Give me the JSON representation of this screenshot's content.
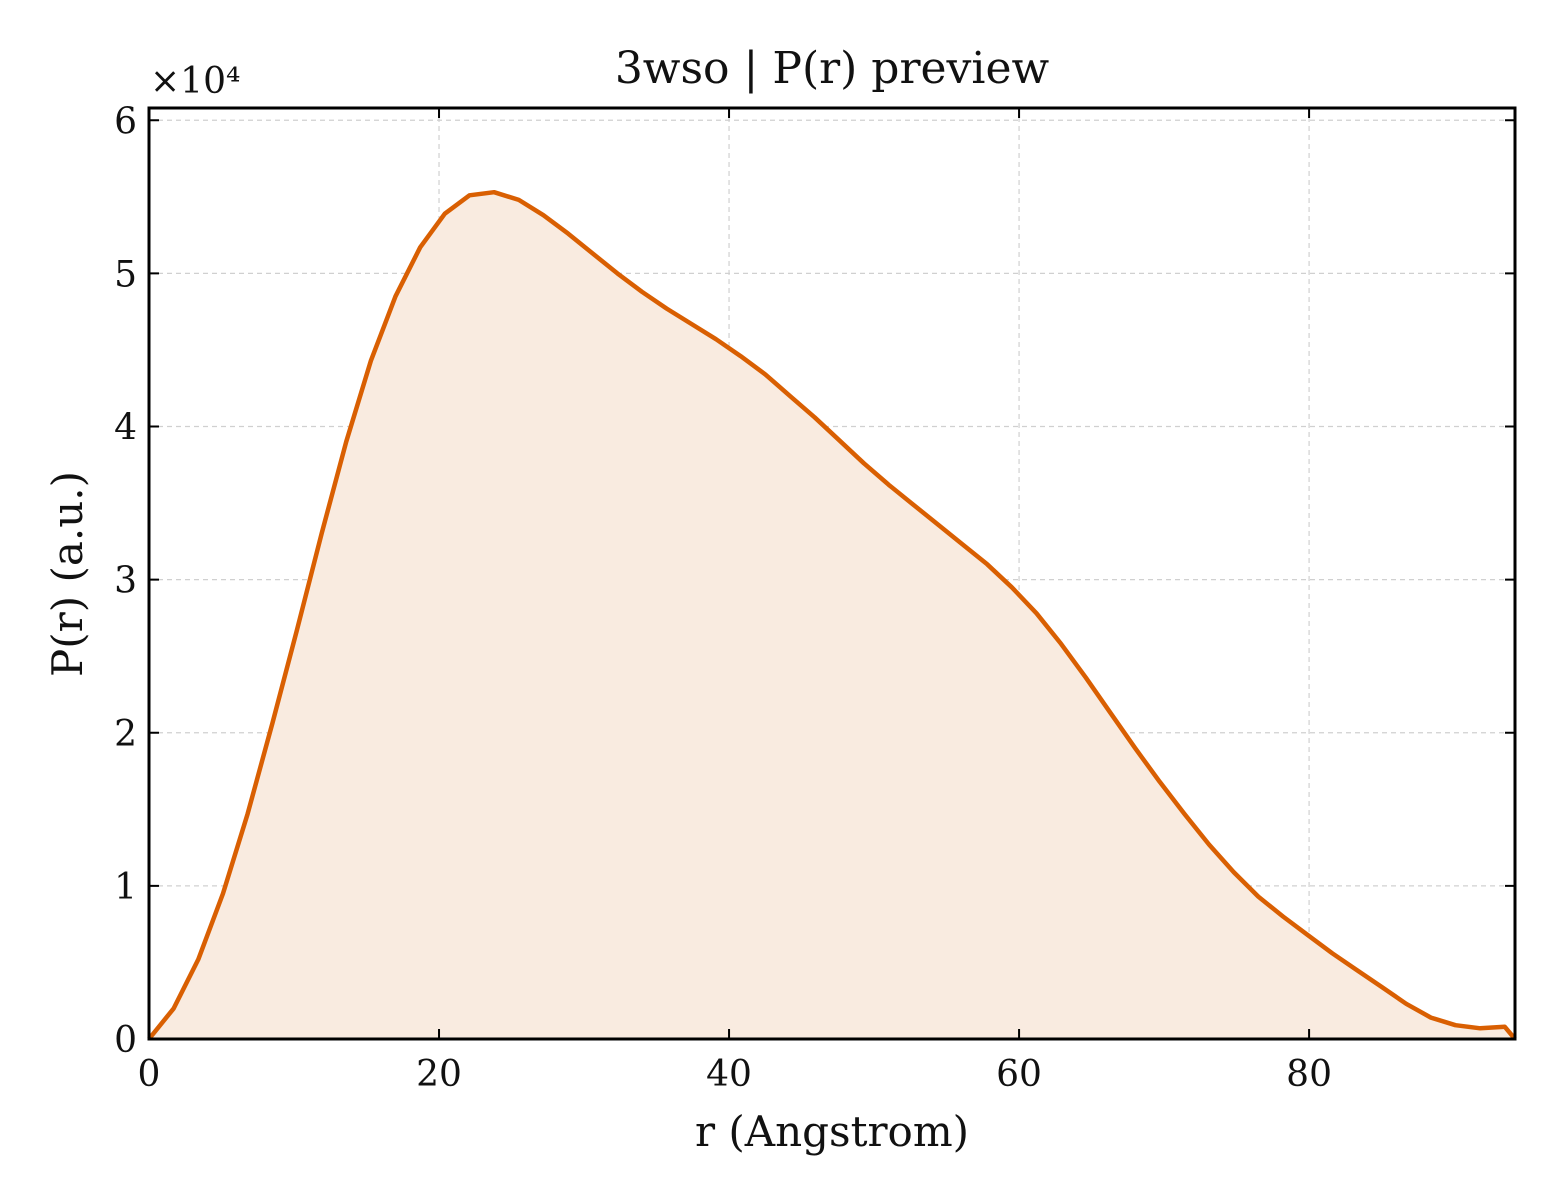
{
  "chart_data": {
    "type": "area",
    "title": "3wso | P(r) preview",
    "xlabel": "r (Angstrom)",
    "ylabel": "P(r) (a.u.)",
    "y_multiplier_label": "×10⁴",
    "xlim": [
      0,
      94.2
    ],
    "ylim": [
      0,
      60800
    ],
    "x_ticks": [
      0,
      20,
      40,
      60,
      80
    ],
    "y_ticks": [
      0,
      10000,
      20000,
      30000,
      40000,
      50000,
      60000
    ],
    "x_tick_labels": [
      "0",
      "20",
      "40",
      "60",
      "80"
    ],
    "y_tick_labels": [
      "0",
      "1",
      "2",
      "3",
      "4",
      "5",
      "6"
    ],
    "grid": true,
    "colors": {
      "line": "#d95f02",
      "fill": "#f9ebe0",
      "grid": "#d0d0d0",
      "frame": "#000000"
    },
    "series": [
      {
        "x": [
          0,
          1.7,
          3.4,
          5.1,
          6.8,
          8.5,
          10.2,
          11.9,
          13.6,
          15.3,
          17.0,
          18.7,
          20.4,
          22.1,
          23.8,
          25.5,
          27.2,
          28.9,
          30.6,
          32.3,
          34.0,
          35.7,
          37.4,
          39.1,
          40.8,
          42.5,
          44.2,
          45.9,
          47.6,
          49.3,
          51.0,
          52.7,
          54.4,
          56.1,
          57.8,
          59.5,
          61.2,
          62.9,
          64.6,
          66.3,
          68.0,
          69.7,
          71.4,
          73.1,
          74.8,
          76.5,
          78.2,
          79.9,
          81.6,
          83.3,
          85.0,
          86.7,
          88.4,
          90.1,
          91.8,
          93.5,
          94.2
        ],
        "y": [
          0,
          2000,
          5200,
          9500,
          14700,
          20600,
          26700,
          33000,
          39000,
          44300,
          48500,
          51700,
          53900,
          55100,
          55300,
          54800,
          53800,
          52600,
          51300,
          50000,
          48800,
          47700,
          46700,
          45700,
          44600,
          43400,
          42000,
          40600,
          39100,
          37600,
          36200,
          34900,
          33600,
          32300,
          31000,
          29500,
          27800,
          25800,
          23600,
          21300,
          19000,
          16800,
          14700,
          12700,
          10900,
          9300,
          8000,
          6800,
          5600,
          4500,
          3400,
          2300,
          1400,
          900,
          700,
          800,
          0
        ]
      }
    ]
  }
}
